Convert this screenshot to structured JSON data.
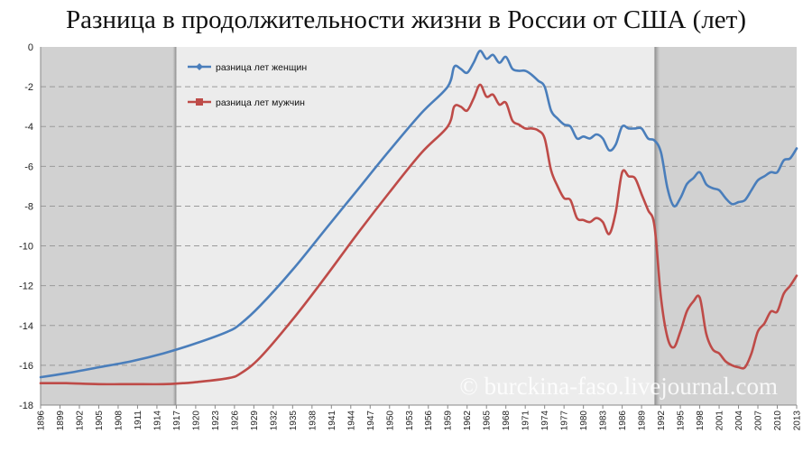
{
  "chart_data": {
    "type": "line",
    "title": "Разница в продолжительности жизни в России от США (лет)",
    "ylim": [
      -18,
      0
    ],
    "yticks": [
      0,
      -2,
      -4,
      -6,
      -8,
      -10,
      -12,
      -14,
      -16,
      -18
    ],
    "xlim": [
      1896,
      2013
    ],
    "xticks": [
      "1896",
      "1899",
      "1902",
      "1905",
      "1908",
      "1911",
      "1914",
      "1917",
      "1920",
      "1923",
      "1926",
      "1929",
      "1932",
      "1935",
      "1938",
      "1941",
      "1944",
      "1947",
      "1950",
      "1953",
      "1956",
      "1959",
      "1962",
      "1965",
      "1968",
      "1971",
      "1974",
      "1977",
      "1980",
      "1983",
      "1986",
      "1989",
      "1992",
      "1995",
      "1998",
      "2001",
      "2004",
      "2007",
      "2010",
      "2013"
    ],
    "grid": "horizontal dashed",
    "legend_position": "top-left inside plot",
    "shaded_periods": [
      [
        1896,
        1917
      ],
      [
        1991,
        2013
      ]
    ],
    "colors": {
      "women": "#4a7ebb",
      "men": "#be4b48",
      "shade": "#d1d1d1",
      "plot_bg": "#ececec"
    },
    "watermark": "© burckina-faso.livejournal.com",
    "series": [
      {
        "name": "разница лет женщин",
        "marker": "diamond",
        "x": [
          1896,
          1900,
          1905,
          1910,
          1915,
          1920,
          1925,
          1927,
          1930,
          1935,
          1940,
          1945,
          1950,
          1955,
          1959,
          1960,
          1961,
          1962,
          1963,
          1964,
          1965,
          1966,
          1967,
          1968,
          1969,
          1970,
          1971,
          1972,
          1973,
          1974,
          1975,
          1976,
          1977,
          1978,
          1979,
          1980,
          1981,
          1982,
          1983,
          1984,
          1985,
          1986,
          1987,
          1988,
          1989,
          1990,
          1991,
          1992,
          1993,
          1994,
          1995,
          1996,
          1997,
          1998,
          1999,
          2000,
          2001,
          2002,
          2003,
          2004,
          2005,
          2006,
          2007,
          2008,
          2009,
          2010,
          2011,
          2012,
          2013
        ],
        "values": [
          -16.6,
          -16.4,
          -16.1,
          -15.8,
          -15.4,
          -14.9,
          -14.3,
          -13.9,
          -13.0,
          -11.2,
          -9.2,
          -7.2,
          -5.2,
          -3.3,
          -2.0,
          -1.0,
          -1.1,
          -1.3,
          -0.8,
          -0.2,
          -0.6,
          -0.4,
          -0.8,
          -0.5,
          -1.1,
          -1.2,
          -1.2,
          -1.4,
          -1.7,
          -2.0,
          -3.2,
          -3.6,
          -3.9,
          -4.0,
          -4.6,
          -4.5,
          -4.6,
          -4.4,
          -4.6,
          -5.2,
          -4.9,
          -4.0,
          -4.1,
          -4.1,
          -4.1,
          -4.6,
          -4.7,
          -5.3,
          -7.1,
          -8.0,
          -7.6,
          -6.9,
          -6.6,
          -6.3,
          -6.9,
          -7.1,
          -7.2,
          -7.6,
          -7.9,
          -7.8,
          -7.7,
          -7.2,
          -6.7,
          -6.5,
          -6.3,
          -6.3,
          -5.7,
          -5.6,
          -5.1
        ]
      },
      {
        "name": "разница лет мужчин",
        "marker": "square",
        "x": [
          1896,
          1900,
          1905,
          1910,
          1915,
          1918,
          1920,
          1925,
          1927,
          1930,
          1935,
          1940,
          1945,
          1950,
          1955,
          1959,
          1960,
          1961,
          1962,
          1963,
          1964,
          1965,
          1966,
          1967,
          1968,
          1969,
          1970,
          1971,
          1972,
          1973,
          1974,
          1975,
          1976,
          1977,
          1978,
          1979,
          1980,
          1981,
          1982,
          1983,
          1984,
          1985,
          1986,
          1987,
          1988,
          1989,
          1990,
          1991,
          1992,
          1993,
          1994,
          1995,
          1996,
          1997,
          1998,
          1999,
          2000,
          2001,
          2002,
          2003,
          2004,
          2005,
          2006,
          2007,
          2008,
          2009,
          2010,
          2011,
          2012,
          2013
        ],
        "values": [
          -16.9,
          -16.9,
          -16.95,
          -16.95,
          -16.95,
          -16.9,
          -16.85,
          -16.65,
          -16.4,
          -15.6,
          -13.7,
          -11.6,
          -9.4,
          -7.3,
          -5.3,
          -4.0,
          -3.0,
          -3.0,
          -3.2,
          -2.6,
          -1.9,
          -2.5,
          -2.4,
          -2.9,
          -2.8,
          -3.7,
          -3.9,
          -4.1,
          -4.1,
          -4.2,
          -4.6,
          -6.2,
          -7.0,
          -7.6,
          -7.7,
          -8.6,
          -8.7,
          -8.8,
          -8.6,
          -8.8,
          -9.4,
          -8.3,
          -6.3,
          -6.5,
          -6.6,
          -7.4,
          -8.2,
          -9.0,
          -12.6,
          -14.6,
          -15.1,
          -14.3,
          -13.3,
          -12.8,
          -12.6,
          -14.4,
          -15.2,
          -15.4,
          -15.8,
          -16.0,
          -16.1,
          -16.1,
          -15.4,
          -14.3,
          -13.9,
          -13.3,
          -13.3,
          -12.4,
          -12.0,
          -11.5
        ]
      }
    ]
  }
}
